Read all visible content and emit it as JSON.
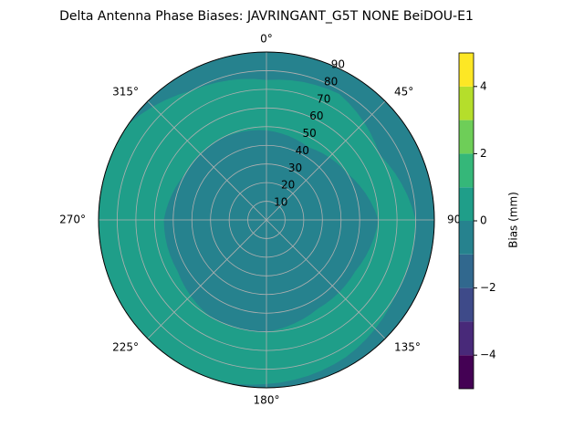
{
  "chart_data": {
    "type": "polar_contour",
    "title": "Delta Antenna Phase Biases: JAVRINGANT_G5T  NONE BeiDOU-E1",
    "thetaticks": [
      {
        "value": 0,
        "label": "0°"
      },
      {
        "value": 45,
        "label": "45°"
      },
      {
        "value": 90,
        "label": "90"
      },
      {
        "value": 135,
        "label": "135°"
      },
      {
        "value": 180,
        "label": "180°"
      },
      {
        "value": 225,
        "label": "225°"
      },
      {
        "value": 270,
        "label": "270°"
      },
      {
        "value": 315,
        "label": "315°"
      }
    ],
    "rlim": [
      0,
      90
    ],
    "rticks": [
      10,
      20,
      30,
      40,
      50,
      60,
      70,
      80,
      90
    ],
    "grid": true,
    "colorbar": {
      "label": "Bias (mm)",
      "levels": [
        -5,
        -4,
        -3,
        -2,
        -1,
        0,
        1,
        2,
        3,
        4,
        5
      ],
      "colors": [
        "#440154",
        "#482979",
        "#3e4a89",
        "#31688e",
        "#26828e",
        "#1f9e89",
        "#35b779",
        "#6ece58",
        "#b5de2b",
        "#fde725"
      ],
      "ylim": [
        -5,
        5
      ],
      "yticks": [
        {
          "value": -4,
          "label": "−4"
        },
        {
          "value": -2,
          "label": "−2"
        },
        0,
        2,
        4
      ]
    }
  }
}
